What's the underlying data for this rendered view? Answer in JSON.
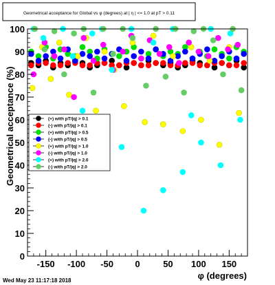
{
  "chart_data": {
    "type": "scatter",
    "title": "Geometrical acceptance for Global vs φ (degrees) at | η | <= 1.0 at pT > 0.11",
    "xlabel": "φ (degrees)",
    "ylabel": "Geometrical acceptance (%)",
    "xlim": [
      -180,
      180
    ],
    "ylim": [
      0,
      100
    ],
    "x_ticks": [
      -150,
      -100,
      -50,
      0,
      50,
      100,
      150
    ],
    "y_ticks": [
      0,
      10,
      20,
      30,
      40,
      50,
      60,
      70,
      80,
      90,
      100
    ],
    "footer_timestamp": "Wed May 23 11:17:18 2018",
    "grid": false,
    "legend_position": "middle-left",
    "series": [
      {
        "name": "(+) with pT/|q| > 0.1",
        "color": "#000000",
        "marker": "circle",
        "x": [
          -174,
          -162,
          -150,
          -138,
          -126,
          -114,
          -102,
          -90,
          -78,
          -66,
          -54,
          -42,
          -30,
          -18,
          -6,
          6,
          18,
          30,
          42,
          54,
          66,
          78,
          90,
          102,
          114,
          126,
          138,
          150,
          162,
          174
        ],
        "y": [
          85,
          84,
          86,
          83,
          85,
          84,
          86,
          85,
          83,
          84,
          85,
          86,
          84,
          83,
          85,
          84,
          86,
          85,
          84,
          85,
          83,
          84,
          86,
          85,
          84,
          83,
          85,
          84,
          86,
          83
        ]
      },
      {
        "name": "(-) with pT/|q| > 0.1",
        "color": "#ff0000",
        "marker": "circle",
        "x": [
          -174,
          -162,
          -150,
          -138,
          -126,
          -114,
          -102,
          -90,
          -78,
          -66,
          -54,
          -42,
          -30,
          -18,
          -6,
          6,
          18,
          30,
          42,
          54,
          66,
          78,
          90,
          102,
          114,
          126,
          138,
          150,
          162,
          174
        ],
        "y": [
          84,
          85,
          85,
          84,
          84,
          85,
          85,
          84,
          84,
          85,
          85,
          84,
          84,
          85,
          85,
          84,
          84,
          85,
          85,
          84,
          84,
          85,
          85,
          84,
          84,
          85,
          85,
          84,
          84,
          85
        ]
      },
      {
        "name": "(+) with pT/|q| > 0.5",
        "color": "#00dd00",
        "marker": "circle",
        "x": [
          -174,
          -162,
          -150,
          -138,
          -126,
          -114,
          -102,
          -90,
          -78,
          -66,
          -54,
          -42,
          -30,
          -18,
          -6,
          6,
          18,
          30,
          42,
          54,
          66,
          78,
          90,
          102,
          114,
          126,
          138,
          150,
          162,
          174
        ],
        "y": [
          90,
          88,
          92,
          87,
          91,
          89,
          88,
          92,
          90,
          87,
          91,
          89,
          88,
          90,
          92,
          87,
          89,
          91,
          88,
          90,
          89,
          92,
          87,
          90,
          88,
          91,
          89,
          87,
          92,
          90
        ]
      },
      {
        "name": "(-) with pT/|q| > 0.5",
        "color": "#0000ff",
        "marker": "circle",
        "x": [
          -174,
          -162,
          -150,
          -138,
          -126,
          -114,
          -102,
          -90,
          -78,
          -66,
          -54,
          -42,
          -30,
          -18,
          -6,
          6,
          18,
          30,
          42,
          54,
          66,
          78,
          90,
          102,
          114,
          126,
          138,
          150,
          162,
          174
        ],
        "y": [
          89,
          86,
          88,
          90,
          87,
          91,
          86,
          89,
          88,
          90,
          87,
          89,
          91,
          86,
          88,
          90,
          87,
          91,
          89,
          86,
          88,
          90,
          87,
          89,
          91,
          86,
          88,
          90,
          87,
          89
        ]
      },
      {
        "name": "(+) with pT/|q| > 1.0",
        "color": "#ffff00",
        "marker": "circle",
        "x": [
          -172,
          -156,
          -142,
          -128,
          -112,
          -98,
          -84,
          -68,
          -54,
          -38,
          -22,
          -8,
          12,
          26,
          42,
          58,
          74,
          88,
          104,
          118,
          134,
          150,
          166
        ],
        "y": [
          74,
          92,
          78,
          94,
          71,
          88,
          96,
          64,
          90,
          82,
          66,
          94,
          59,
          97,
          58,
          88,
          55,
          92,
          60,
          86,
          49,
          92,
          63
        ]
      },
      {
        "name": "(-) with pT/|q| > 1.0",
        "color": "#ff00ff",
        "marker": "circle",
        "x": [
          -170,
          -152,
          -136,
          -120,
          -104,
          -88,
          -72,
          -56,
          -40,
          -24,
          -10,
          6,
          20,
          36,
          52,
          68,
          84,
          100,
          116,
          132,
          148,
          164
        ],
        "y": [
          80,
          94,
          88,
          91,
          70,
          96,
          86,
          93,
          82,
          90,
          97,
          87,
          95,
          89,
          92,
          85,
          94,
          90,
          88,
          96,
          91,
          93
        ]
      },
      {
        "name": "(+) with pT/|q| > 2.0",
        "color": "#00ffff",
        "marker": "circle",
        "x": [
          -170,
          -154,
          -138,
          -122,
          -106,
          -90,
          -74,
          -58,
          -42,
          -26,
          -10,
          10,
          26,
          42,
          58,
          74,
          88,
          104,
          120,
          136,
          152,
          168
        ],
        "y": [
          100,
          96,
          52,
          100,
          88,
          64,
          98,
          100,
          82,
          48,
          100,
          20,
          94,
          29,
          100,
          37,
          62,
          50,
          100,
          40,
          98,
          60
        ]
      },
      {
        "name": "(-) with pT/|q| > 2.0",
        "color": "#66cc66",
        "marker": "circle",
        "x": [
          -168,
          -152,
          -136,
          -120,
          -104,
          -88,
          -72,
          -56,
          -40,
          -24,
          -8,
          14,
          30,
          46,
          62,
          76,
          92,
          108,
          124,
          140,
          156,
          170
        ],
        "y": [
          100,
          91,
          99,
          80,
          98,
          100,
          72,
          100,
          89,
          100,
          96,
          75,
          100,
          79,
          100,
          72,
          99,
          100,
          95,
          80,
          100,
          73
        ]
      }
    ]
  }
}
